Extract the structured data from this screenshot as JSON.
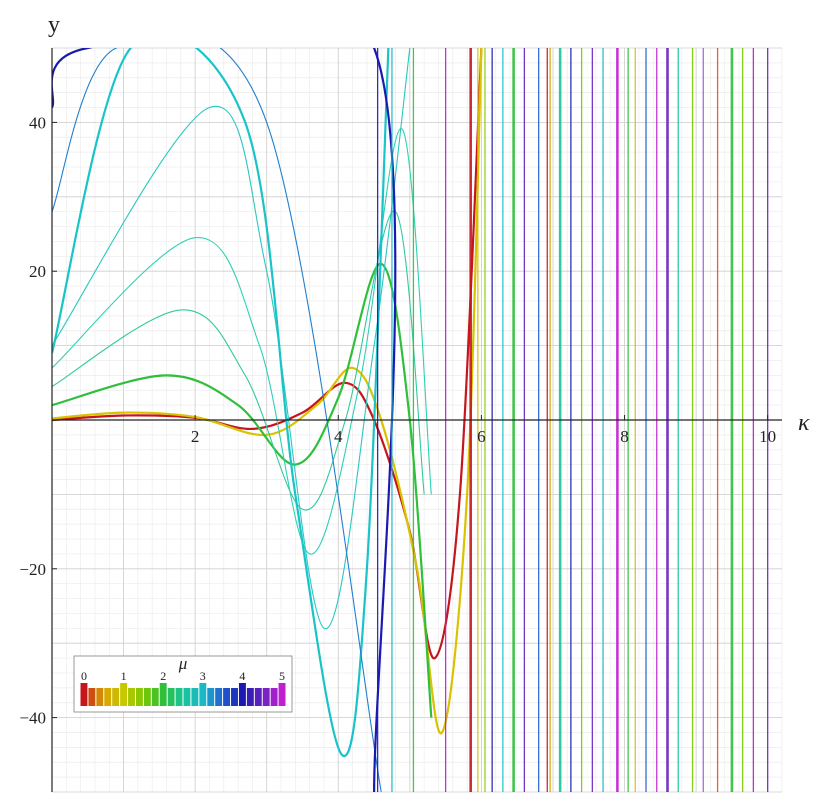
{
  "chart_data": {
    "type": "line",
    "xlabel": "κ",
    "ylabel": "y",
    "xlim": [
      0,
      10.2
    ],
    "ylim": [
      -50,
      50
    ],
    "x_ticks": [
      "2",
      "4",
      "6",
      "8",
      "10"
    ],
    "y_ticks": [
      "40",
      "20",
      "−20",
      "−40"
    ],
    "x_tick_values": [
      2,
      4,
      6,
      8,
      10
    ],
    "y_tick_values": [
      40,
      20,
      -20,
      -40
    ],
    "grid": true,
    "legend": {
      "title": "μ",
      "placement": "bottom-left",
      "labels": [
        "0",
        "1",
        "2",
        "3",
        "4",
        "5"
      ],
      "label_values": [
        0,
        1,
        2,
        3,
        4,
        5
      ],
      "swatch_count": 26,
      "color_scale": [
        "#c4161c",
        "#d9a300",
        "#c8c800",
        "#7ac800",
        "#2fbf3a",
        "#19c49a",
        "#19b9c8",
        "#1f5fd0",
        "#1a1ab0",
        "#6a22c0",
        "#c020d0"
      ]
    },
    "series_description": "Family of oscillatory curves y(κ) parameterised by μ from 0 to 5; curves diverge to ±∞ at vertical asymptotes beyond κ≈5.5",
    "series": [
      {
        "mu": 0.0,
        "color": "#c4161c",
        "points": [
          [
            0,
            0
          ],
          [
            1,
            0.6
          ],
          [
            2,
            0.3
          ],
          [
            2.8,
            -1.2
          ],
          [
            3.5,
            1.0
          ],
          [
            4.1,
            5.0
          ],
          [
            4.5,
            0
          ],
          [
            5,
            -15
          ],
          [
            5.35,
            -32
          ],
          [
            5.7,
            -10
          ],
          [
            6.0,
            50
          ]
        ]
      },
      {
        "mu": 1.0,
        "color": "#d9c200",
        "points": [
          [
            0,
            0.2
          ],
          [
            1,
            1.0
          ],
          [
            2,
            0.4
          ],
          [
            3,
            -2
          ],
          [
            3.7,
            2
          ],
          [
            4.2,
            7
          ],
          [
            4.6,
            0
          ],
          [
            5.1,
            -20
          ],
          [
            5.45,
            -42
          ],
          [
            5.8,
            -10
          ],
          [
            6.0,
            50
          ]
        ]
      },
      {
        "mu": 2.0,
        "color": "#2fbf3a",
        "points": [
          [
            0,
            2.0
          ],
          [
            1.6,
            6.0
          ],
          [
            2.6,
            2.0
          ],
          [
            3.4,
            -6
          ],
          [
            4.0,
            3
          ],
          [
            4.6,
            21
          ],
          [
            5.0,
            0
          ],
          [
            5.3,
            -40
          ]
        ]
      },
      {
        "mu": 2.4,
        "color": "#32c8a0",
        "points": [
          [
            0,
            4.5
          ],
          [
            1.8,
            14.8
          ],
          [
            2.7,
            6
          ],
          [
            3.5,
            -12
          ],
          [
            4.1,
            0
          ],
          [
            4.8,
            28
          ],
          [
            5.2,
            -10
          ]
        ]
      },
      {
        "mu": 2.6,
        "color": "#2ed0b4",
        "points": [
          [
            0,
            7
          ],
          [
            2.0,
            24.5
          ],
          [
            2.9,
            10
          ],
          [
            3.6,
            -18
          ],
          [
            4.3,
            5
          ],
          [
            4.9,
            39
          ],
          [
            5.3,
            -10
          ]
        ]
      },
      {
        "mu": 2.8,
        "color": "#29c8c0",
        "points": [
          [
            0,
            10
          ],
          [
            2.2,
            42
          ],
          [
            3.0,
            20
          ],
          [
            3.8,
            -28
          ],
          [
            4.5,
            10
          ],
          [
            5.0,
            50
          ]
        ]
      },
      {
        "mu": 3.0,
        "color": "#19c4c8",
        "points": [
          [
            0,
            9
          ],
          [
            1.1,
            50
          ],
          [
            2.7,
            40
          ],
          [
            3.4,
            -10
          ],
          [
            4.05,
            -45
          ],
          [
            4.4,
            -20
          ],
          [
            4.7,
            50
          ]
        ]
      },
      {
        "mu": 3.5,
        "color": "#1f7fd0",
        "points": [
          [
            0,
            28
          ],
          [
            0.9,
            50
          ],
          [
            3.0,
            40
          ],
          [
            4.6,
            -50
          ]
        ]
      },
      {
        "mu": 4.0,
        "color": "#1a1ab0",
        "points": [
          [
            0,
            42
          ],
          [
            0.5,
            50
          ],
          [
            4.5,
            50
          ],
          [
            4.5,
            -50
          ]
        ]
      }
    ],
    "asymptotes": [
      {
        "x": 4.55,
        "color": "#1a1ab0"
      },
      {
        "x": 4.75,
        "color": "#19b9c8"
      },
      {
        "x": 5.05,
        "color": "#2fbf3a"
      },
      {
        "x": 5.5,
        "color": "#b020d0"
      },
      {
        "x": 5.85,
        "color": "#c4161c"
      },
      {
        "x": 5.95,
        "color": "#d9c200"
      },
      {
        "x": 6.05,
        "color": "#8dd000"
      },
      {
        "x": 6.15,
        "color": "#1a1ab0"
      },
      {
        "x": 6.3,
        "color": "#19c4c8"
      },
      {
        "x": 6.45,
        "color": "#2fbf3a"
      },
      {
        "x": 6.6,
        "color": "#6a22c0"
      },
      {
        "x": 6.8,
        "color": "#1f5fd0"
      },
      {
        "x": 6.92,
        "color": "#c4161c"
      },
      {
        "x": 6.96,
        "color": "#d9a300"
      },
      {
        "x": 7.1,
        "color": "#19c49a"
      },
      {
        "x": 7.25,
        "color": "#1a1ab0"
      },
      {
        "x": 7.4,
        "color": "#7ac800"
      },
      {
        "x": 7.55,
        "color": "#6a22c0"
      },
      {
        "x": 7.7,
        "color": "#19b9c8"
      },
      {
        "x": 7.9,
        "color": "#c020d0"
      },
      {
        "x": 8.05,
        "color": "#2fbf3a"
      },
      {
        "x": 8.15,
        "color": "#d9c200"
      },
      {
        "x": 8.3,
        "color": "#1f5fd0"
      },
      {
        "x": 8.45,
        "color": "#c020d0"
      },
      {
        "x": 8.6,
        "color": "#6a22c0"
      },
      {
        "x": 8.75,
        "color": "#19c49a"
      },
      {
        "x": 8.95,
        "color": "#7ac800"
      },
      {
        "x": 9.1,
        "color": "#9a60d0"
      },
      {
        "x": 9.3,
        "color": "#e8501a"
      },
      {
        "x": 9.5,
        "color": "#2fbf3a"
      },
      {
        "x": 9.65,
        "color": "#7ac800"
      },
      {
        "x": 9.8,
        "color": "#b020d0"
      },
      {
        "x": 10.0,
        "color": "#6a22c0"
      }
    ]
  }
}
